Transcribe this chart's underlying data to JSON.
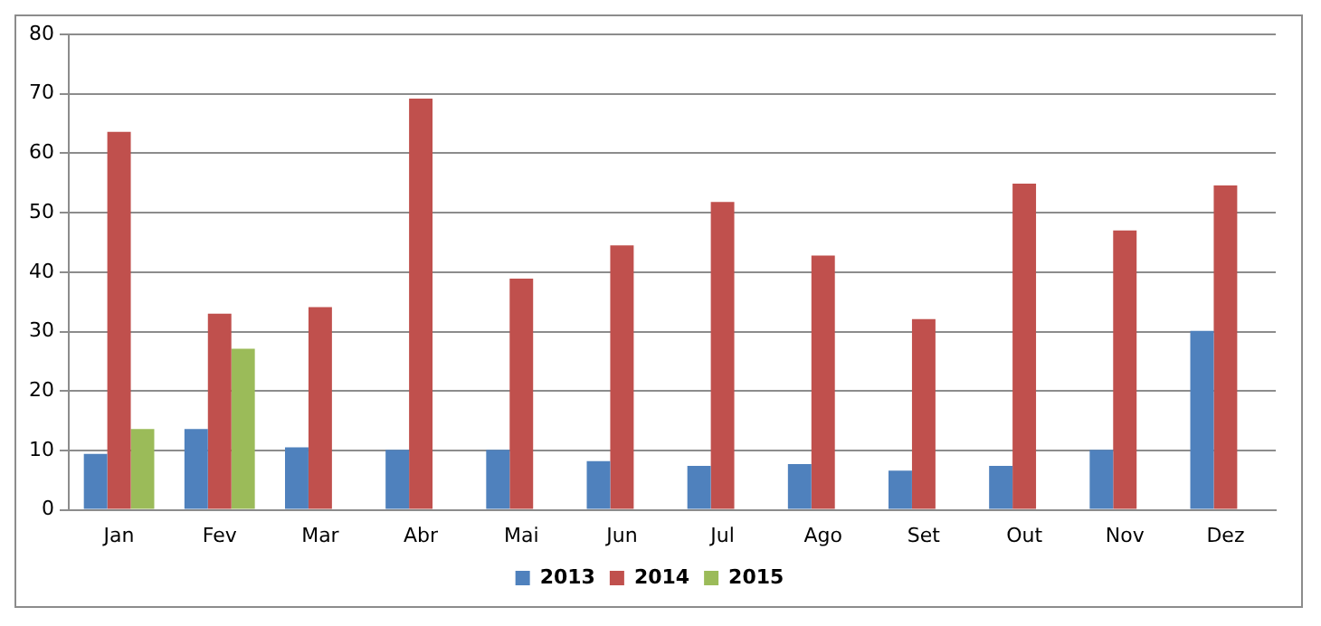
{
  "chart_data": {
    "type": "bar",
    "categories": [
      "Jan",
      "Fev",
      "Mar",
      "Abr",
      "Mai",
      "Jun",
      "Jul",
      "Ago",
      "Set",
      "Out",
      "Nov",
      "Dez"
    ],
    "series": [
      {
        "name": "2013",
        "color": "#4f81bd",
        "values": [
          9.4,
          13.6,
          10.5,
          10.1,
          10.1,
          8.2,
          7.4,
          7.7,
          6.6,
          7.4,
          10.1,
          30.1
        ]
      },
      {
        "name": "2014",
        "color": "#c0504d",
        "values": [
          63.6,
          33.0,
          34.1,
          69.2,
          38.9,
          44.5,
          51.8,
          42.8,
          32.1,
          54.9,
          47.0,
          54.6
        ]
      },
      {
        "name": "2015",
        "color": "#9bbb59",
        "values": [
          13.6,
          27.1,
          null,
          null,
          null,
          null,
          null,
          null,
          null,
          null,
          null,
          null
        ]
      }
    ],
    "ylim": [
      0,
      80
    ],
    "yticks": [
      0,
      10,
      20,
      30,
      40,
      50,
      60,
      70,
      80
    ],
    "grid": "y",
    "legend": "bottom"
  }
}
